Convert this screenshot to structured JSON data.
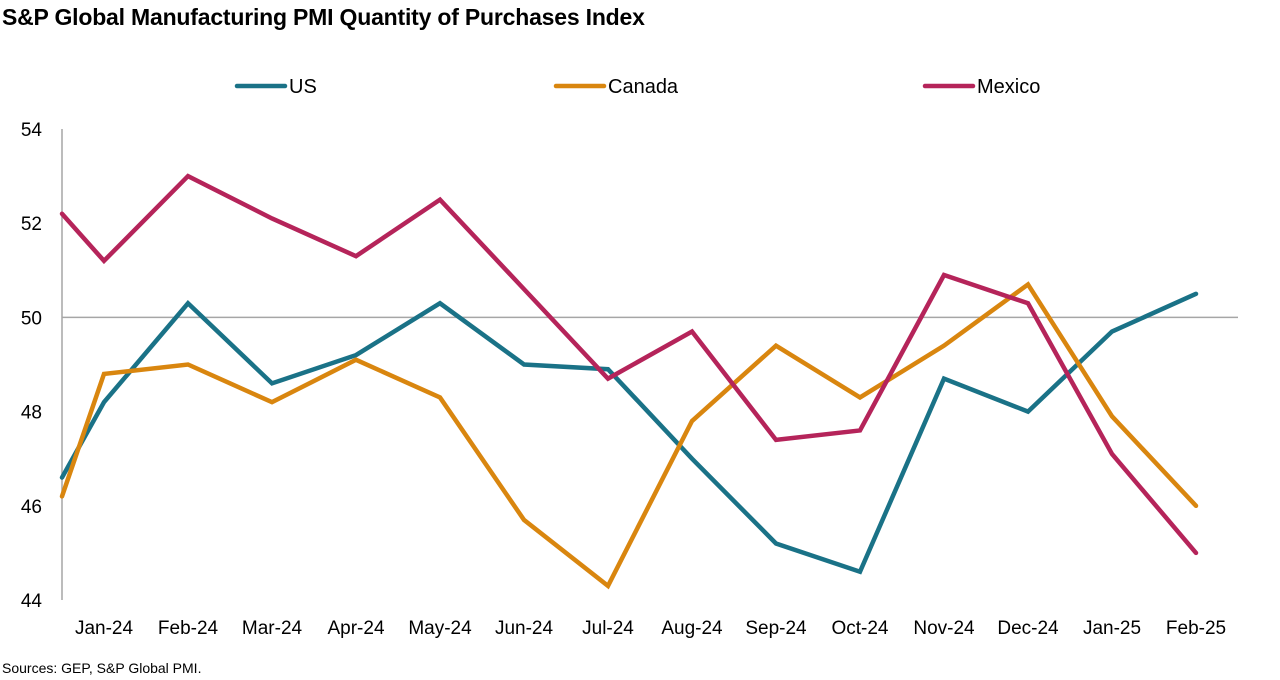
{
  "chart_data": {
    "type": "line",
    "title": "S&P Global Manufacturing PMI Quantity of Purchases Index",
    "source": "Sources: GEP, S&P Global PMI.",
    "xlabel": "",
    "ylabel": "",
    "categories": [
      "Jan-24",
      "Feb-24",
      "Mar-24",
      "Apr-24",
      "May-24",
      "Jun-24",
      "Jul-24",
      "Aug-24",
      "Sep-24",
      "Oct-24",
      "Nov-24",
      "Dec-24",
      "Jan-25",
      "Feb-25"
    ],
    "ylim": [
      44,
      54
    ],
    "yticks": [
      "44",
      "46",
      "48",
      "50",
      "52",
      "54"
    ],
    "reference_line": 50,
    "grid": false,
    "legend_position": "top",
    "series": [
      {
        "name": "US",
        "color": "#1a7287",
        "left_edge_value": 46.6,
        "values": [
          48.2,
          50.3,
          48.6,
          49.2,
          50.3,
          49.0,
          48.9,
          47.0,
          45.2,
          44.6,
          48.7,
          48.0,
          49.7,
          50.5
        ]
      },
      {
        "name": "Canada",
        "color": "#d9860f",
        "left_edge_value": 46.2,
        "values": [
          48.8,
          49.0,
          48.2,
          49.1,
          48.3,
          45.7,
          44.3,
          47.8,
          49.4,
          48.3,
          49.4,
          50.7,
          47.9,
          46.0
        ]
      },
      {
        "name": "Mexico",
        "color": "#b5245a",
        "left_edge_value": 52.2,
        "values": [
          51.2,
          53.0,
          52.1,
          51.3,
          52.5,
          50.6,
          48.7,
          49.7,
          47.4,
          47.6,
          50.9,
          50.3,
          47.1,
          45.0
        ]
      }
    ]
  }
}
